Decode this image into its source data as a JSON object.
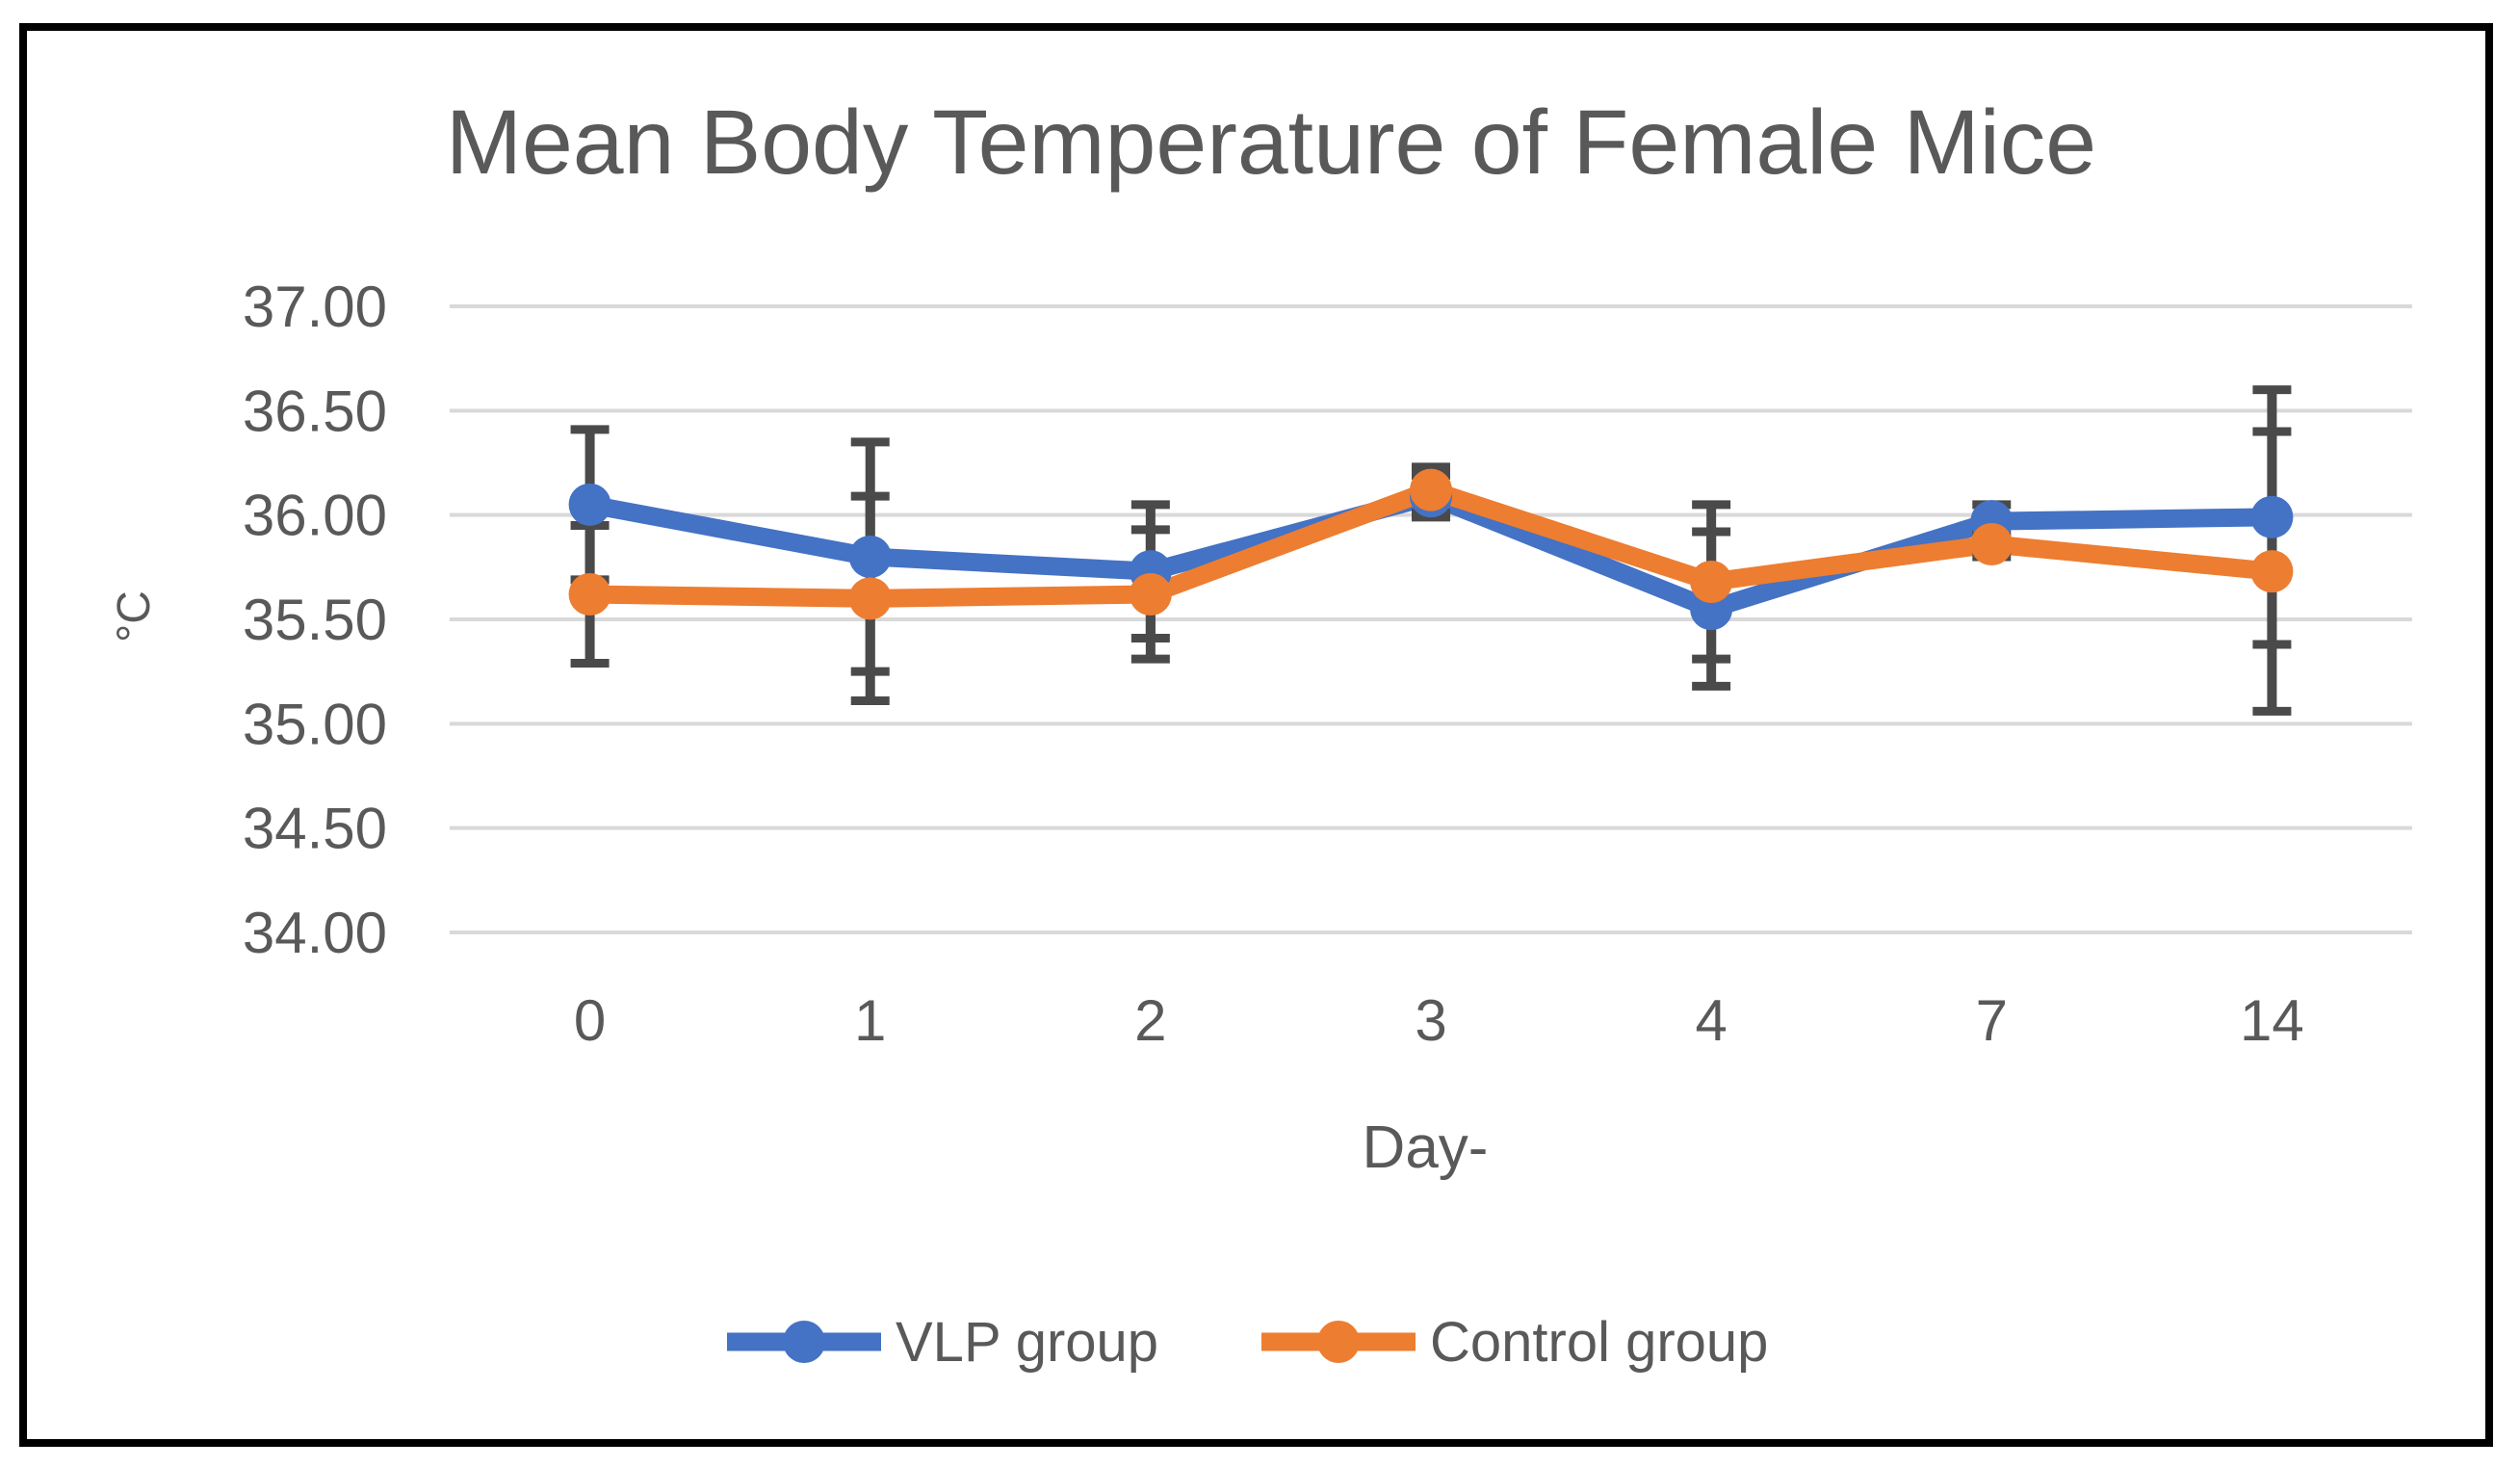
{
  "chart_data": {
    "type": "line",
    "title": "Mean Body Temperature of Female Mice",
    "xlabel": "Day-",
    "ylabel": "°C",
    "categories": [
      "0",
      "1",
      "2",
      "3",
      "4",
      "7",
      "14"
    ],
    "series": [
      {
        "name": "VLP group",
        "color": "#4472C4",
        "values": [
          36.05,
          35.8,
          35.73,
          36.09,
          35.55,
          35.97,
          35.99
        ],
        "error": [
          0.36,
          0.55,
          0.32,
          0.1,
          0.37,
          0.08,
          0.61
        ]
      },
      {
        "name": "Control group",
        "color": "#ED7D31",
        "values": [
          35.62,
          35.6,
          35.62,
          36.12,
          35.68,
          35.86,
          35.73
        ],
        "error": [
          0.33,
          0.49,
          0.31,
          0.11,
          0.37,
          0.06,
          0.67
        ]
      }
    ],
    "ylim": [
      34.0,
      37.0
    ],
    "ytick_step": 0.5,
    "ytick_labels": [
      "37.00",
      "36.50",
      "36.00",
      "35.50",
      "35.00",
      "34.50",
      "34.00"
    ],
    "grid": true,
    "legend_position": "bottom",
    "colors": {
      "error_bar": "#4A4A4A",
      "gridline": "#D9D9D9",
      "text": "#595959",
      "border": "#000000",
      "background": "#FFFFFF"
    }
  }
}
